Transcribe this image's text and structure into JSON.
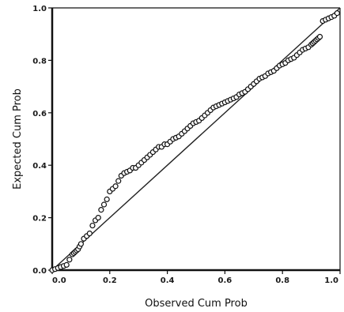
{
  "chart_data": {
    "type": "scatter",
    "title": "",
    "xlabel": "Observed Cum Prob",
    "ylabel": "Expected Cum Prob",
    "xlim": [
      0.0,
      1.0
    ],
    "ylim": [
      0.0,
      1.0
    ],
    "xticks": [
      "0.0",
      "0.2",
      "0.4",
      "0.6",
      "0.8",
      "1.0"
    ],
    "yticks": [
      "0.0",
      "0.2",
      "0.4",
      "0.6",
      "0.8",
      "1.0"
    ],
    "grid": false,
    "legend": "none",
    "reference_line": {
      "from": [
        0.0,
        0.0
      ],
      "to": [
        1.0,
        1.0
      ]
    },
    "series": [
      {
        "x": [
          0.0,
          0.01,
          0.02,
          0.03,
          0.04,
          0.05,
          0.06,
          0.07,
          0.075,
          0.08,
          0.085,
          0.09,
          0.095,
          0.1,
          0.11,
          0.12,
          0.13,
          0.14,
          0.15,
          0.16,
          0.17,
          0.18,
          0.19,
          0.2,
          0.21,
          0.22,
          0.23,
          0.24,
          0.25,
          0.26,
          0.27,
          0.28,
          0.29,
          0.3,
          0.31,
          0.32,
          0.33,
          0.34,
          0.35,
          0.36,
          0.37,
          0.38,
          0.39,
          0.4,
          0.41,
          0.42,
          0.43,
          0.44,
          0.45,
          0.46,
          0.47,
          0.48,
          0.49,
          0.5,
          0.51,
          0.52,
          0.53,
          0.54,
          0.55,
          0.56,
          0.57,
          0.58,
          0.59,
          0.6,
          0.61,
          0.62,
          0.63,
          0.64,
          0.65,
          0.66,
          0.67,
          0.68,
          0.69,
          0.7,
          0.71,
          0.72,
          0.73,
          0.74,
          0.75,
          0.76,
          0.77,
          0.78,
          0.79,
          0.8,
          0.81,
          0.82,
          0.83,
          0.84,
          0.85,
          0.86,
          0.87,
          0.88,
          0.89,
          0.9,
          0.905,
          0.91,
          0.915,
          0.92,
          0.925,
          0.93,
          0.94,
          0.95,
          0.96,
          0.97,
          0.98,
          0.99
        ],
        "values": [
          0.0,
          0.004,
          0.008,
          0.012,
          0.016,
          0.02,
          0.04,
          0.06,
          0.065,
          0.07,
          0.075,
          0.08,
          0.09,
          0.1,
          0.12,
          0.13,
          0.14,
          0.17,
          0.19,
          0.2,
          0.23,
          0.25,
          0.27,
          0.3,
          0.31,
          0.32,
          0.34,
          0.36,
          0.37,
          0.375,
          0.38,
          0.39,
          0.39,
          0.4,
          0.41,
          0.42,
          0.43,
          0.44,
          0.45,
          0.46,
          0.47,
          0.47,
          0.48,
          0.48,
          0.49,
          0.5,
          0.505,
          0.51,
          0.52,
          0.53,
          0.54,
          0.55,
          0.56,
          0.565,
          0.57,
          0.58,
          0.59,
          0.6,
          0.61,
          0.62,
          0.625,
          0.63,
          0.635,
          0.64,
          0.645,
          0.65,
          0.655,
          0.66,
          0.67,
          0.675,
          0.68,
          0.69,
          0.7,
          0.71,
          0.72,
          0.73,
          0.735,
          0.74,
          0.75,
          0.755,
          0.76,
          0.77,
          0.78,
          0.785,
          0.79,
          0.8,
          0.805,
          0.81,
          0.82,
          0.83,
          0.84,
          0.845,
          0.85,
          0.86,
          0.865,
          0.87,
          0.875,
          0.88,
          0.885,
          0.89,
          0.95,
          0.955,
          0.96,
          0.965,
          0.97,
          0.98
        ]
      }
    ]
  }
}
